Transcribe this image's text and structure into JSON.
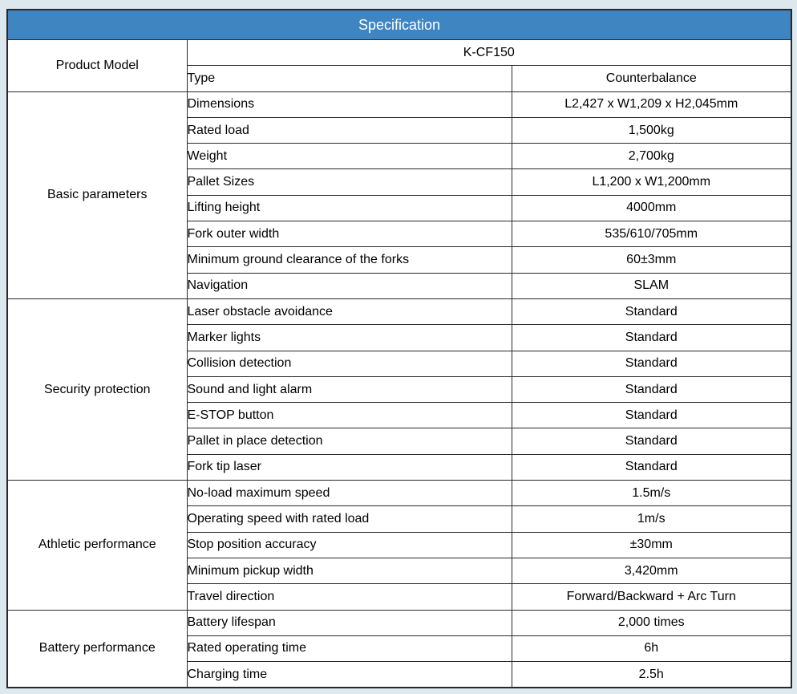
{
  "header": {
    "title": "Specification"
  },
  "product": {
    "label": "Product Model",
    "model": "K-CF150",
    "type_label": "Type",
    "type_value": "Counterbalance"
  },
  "sections": [
    {
      "label": "Basic parameters",
      "rows": [
        [
          "Dimensions",
          "L2,427 x W1,209 x H2,045mm"
        ],
        [
          "Rated load",
          "1,500kg"
        ],
        [
          "Weight",
          "2,700kg"
        ],
        [
          "Pallet Sizes",
          "L1,200 x W1,200mm"
        ],
        [
          "Lifting height",
          "4000mm"
        ],
        [
          "Fork outer width",
          "535/610/705mm"
        ],
        [
          "Minimum ground clearance of the forks",
          "60±3mm"
        ],
        [
          "Navigation",
          "SLAM"
        ]
      ]
    },
    {
      "label": "Security protection",
      "rows": [
        [
          "Laser obstacle avoidance",
          "Standard"
        ],
        [
          "Marker lights",
          "Standard"
        ],
        [
          "Collision detection",
          "Standard"
        ],
        [
          "Sound and light alarm",
          "Standard"
        ],
        [
          "E-STOP button",
          "Standard"
        ],
        [
          "Pallet in place detection",
          "Standard"
        ],
        [
          "Fork tip laser",
          "Standard"
        ]
      ]
    },
    {
      "label": "Athletic performance",
      "rows": [
        [
          "No-load maximum speed",
          "1.5m/s"
        ],
        [
          "Operating speed with rated load",
          "1m/s"
        ],
        [
          "Stop position accuracy",
          "±30mm"
        ],
        [
          "Minimum pickup width",
          "3,420mm"
        ],
        [
          "Travel direction",
          "Forward/Backward + Arc Turn"
        ]
      ]
    },
    {
      "label": "Battery performance",
      "rows": [
        [
          "Battery lifespan",
          "2,000 times"
        ],
        [
          "Rated operating time",
          "6h"
        ],
        [
          "Charging time",
          "2.5h"
        ]
      ]
    }
  ],
  "colors": {
    "header_bg": "#3f85c2",
    "header_text": "#ffffff",
    "page_bg": "#dde8ee",
    "border": "#26292c",
    "cell_bg": "#ffffff"
  }
}
